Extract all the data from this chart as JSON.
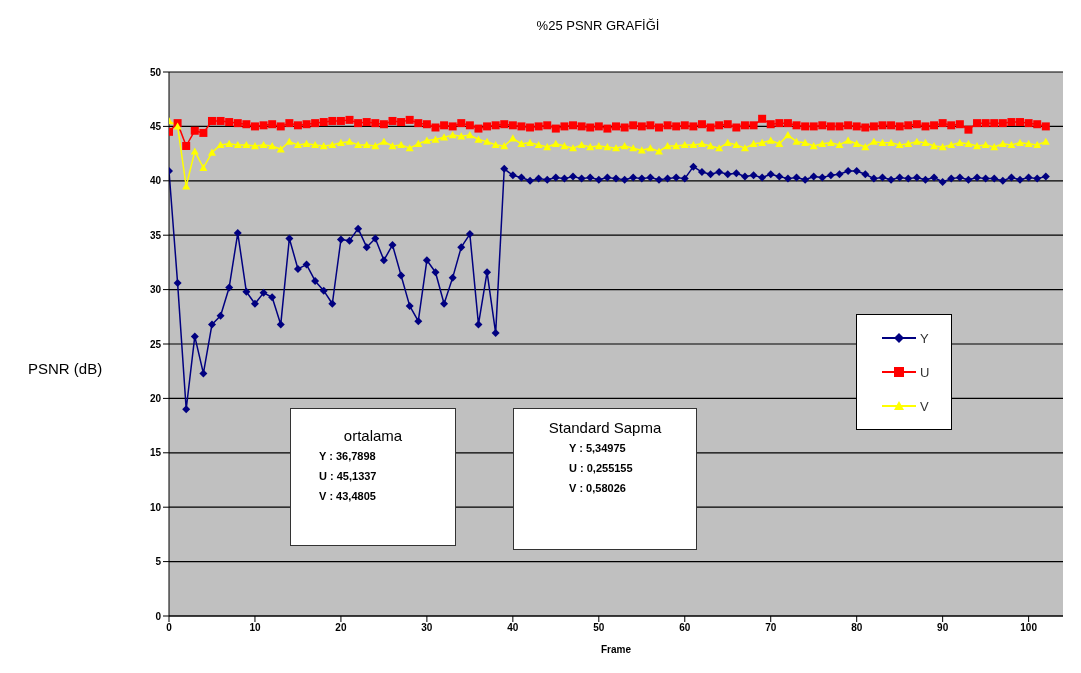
{
  "chart_data": {
    "type": "line",
    "title": "%25 PSNR GRAFİĞİ",
    "xlabel": "Frame",
    "ylabel": "PSNR (dB)",
    "x": [
      0,
      1,
      2,
      3,
      4,
      5,
      6,
      7,
      8,
      9,
      10,
      11,
      12,
      13,
      14,
      15,
      16,
      17,
      18,
      19,
      20,
      21,
      22,
      23,
      24,
      25,
      26,
      27,
      28,
      29,
      30,
      31,
      32,
      33,
      34,
      35,
      36,
      37,
      38,
      39,
      40,
      41,
      42,
      43,
      44,
      45,
      46,
      47,
      48,
      49,
      50,
      51,
      52,
      53,
      54,
      55,
      56,
      57,
      58,
      59,
      60,
      61,
      62,
      63,
      64,
      65,
      66,
      67,
      68,
      69,
      70,
      71,
      72,
      73,
      74,
      75,
      76,
      77,
      78,
      79,
      80,
      81,
      82,
      83,
      84,
      85,
      86,
      87,
      88,
      89,
      90,
      91,
      92,
      93,
      94,
      95,
      96,
      97,
      98,
      99,
      100,
      101,
      102
    ],
    "series": [
      {
        "name": "Y",
        "color": "#000080",
        "marker": "diamond",
        "values": [
          40.9,
          30.6,
          19.0,
          25.7,
          22.3,
          26.8,
          27.6,
          30.2,
          35.2,
          29.8,
          28.7,
          29.7,
          29.3,
          26.8,
          34.7,
          31.9,
          32.3,
          30.8,
          29.9,
          28.7,
          34.6,
          34.5,
          35.6,
          33.9,
          34.7,
          32.7,
          34.1,
          31.3,
          28.5,
          27.1,
          32.7,
          31.6,
          28.7,
          31.1,
          33.9,
          35.1,
          26.8,
          31.6,
          26.0,
          41.1,
          40.5,
          40.3,
          40.0,
          40.2,
          40.1,
          40.3,
          40.2,
          40.4,
          40.2,
          40.3,
          40.1,
          40.3,
          40.2,
          40.1,
          40.3,
          40.2,
          40.3,
          40.1,
          40.2,
          40.3,
          40.2,
          41.3,
          40.8,
          40.6,
          40.8,
          40.6,
          40.7,
          40.4,
          40.5,
          40.3,
          40.6,
          40.4,
          40.2,
          40.3,
          40.1,
          40.4,
          40.3,
          40.5,
          40.6,
          40.9,
          40.9,
          40.6,
          40.2,
          40.3,
          40.1,
          40.3,
          40.2,
          40.3,
          40.1,
          40.3,
          39.9,
          40.2,
          40.3,
          40.1,
          40.3,
          40.2,
          40.2,
          40.0,
          40.3,
          40.1,
          40.3,
          40.2,
          40.4
        ]
      },
      {
        "name": "U",
        "color": "#ff0000",
        "marker": "square",
        "values": [
          44.5,
          45.3,
          43.2,
          44.6,
          44.4,
          45.5,
          45.5,
          45.4,
          45.3,
          45.2,
          45.0,
          45.1,
          45.2,
          45.0,
          45.3,
          45.1,
          45.2,
          45.3,
          45.4,
          45.5,
          45.5,
          45.6,
          45.3,
          45.4,
          45.3,
          45.2,
          45.5,
          45.4,
          45.6,
          45.3,
          45.2,
          44.9,
          45.1,
          45.0,
          45.3,
          45.1,
          44.8,
          45.0,
          45.1,
          45.2,
          45.1,
          45.0,
          44.9,
          45.0,
          45.1,
          44.8,
          45.0,
          45.1,
          45.0,
          44.9,
          45.0,
          44.8,
          45.0,
          44.9,
          45.1,
          45.0,
          45.1,
          44.9,
          45.1,
          45.0,
          45.1,
          45.0,
          45.2,
          44.9,
          45.1,
          45.2,
          44.9,
          45.1,
          45.1,
          45.7,
          45.2,
          45.3,
          45.3,
          45.1,
          45.0,
          45.0,
          45.1,
          45.0,
          45.0,
          45.1,
          45.0,
          44.9,
          45.0,
          45.1,
          45.1,
          45.0,
          45.1,
          45.2,
          45.0,
          45.1,
          45.3,
          45.1,
          45.2,
          44.7,
          45.3,
          45.3,
          45.3,
          45.3,
          45.4,
          45.4,
          45.3,
          45.2,
          45.0
        ]
      },
      {
        "name": "V",
        "color": "#ffff00",
        "marker": "triangle",
        "values": [
          45.5,
          45.0,
          39.5,
          42.7,
          41.2,
          42.6,
          43.3,
          43.4,
          43.3,
          43.3,
          43.2,
          43.3,
          43.2,
          42.9,
          43.6,
          43.3,
          43.4,
          43.3,
          43.2,
          43.3,
          43.5,
          43.6,
          43.3,
          43.3,
          43.2,
          43.6,
          43.2,
          43.3,
          43.0,
          43.4,
          43.7,
          43.8,
          44.0,
          44.2,
          44.1,
          44.2,
          43.8,
          43.6,
          43.3,
          43.2,
          43.9,
          43.4,
          43.5,
          43.3,
          43.1,
          43.4,
          43.2,
          43.0,
          43.3,
          43.1,
          43.2,
          43.1,
          43.0,
          43.2,
          43.0,
          42.8,
          43.0,
          42.7,
          43.2,
          43.2,
          43.3,
          43.3,
          43.4,
          43.2,
          43.0,
          43.5,
          43.3,
          43.0,
          43.4,
          43.5,
          43.7,
          43.4,
          44.2,
          43.6,
          43.5,
          43.2,
          43.4,
          43.5,
          43.3,
          43.7,
          43.4,
          43.1,
          43.6,
          43.5,
          43.5,
          43.3,
          43.4,
          43.6,
          43.5,
          43.2,
          43.1,
          43.3,
          43.5,
          43.4,
          43.2,
          43.3,
          43.1,
          43.4,
          43.3,
          43.5,
          43.4,
          43.3,
          43.6
        ]
      }
    ],
    "xlim": [
      0,
      104
    ],
    "xticks": [
      0,
      10,
      20,
      30,
      40,
      50,
      60,
      70,
      80,
      90,
      100
    ],
    "ylim": [
      0,
      50
    ],
    "yticks": [
      0,
      5,
      10,
      15,
      20,
      25,
      30,
      35,
      40,
      45,
      50
    ],
    "grid": "y",
    "legend": "right",
    "line_style": "solid",
    "annotations": [
      "ortalama\nY : 36,7898\nU : 45,1337\nV : 43,4805",
      "Standard Sapma\nY : 5,34975\nU : 0,255155\nV : 0,58026"
    ]
  }
}
